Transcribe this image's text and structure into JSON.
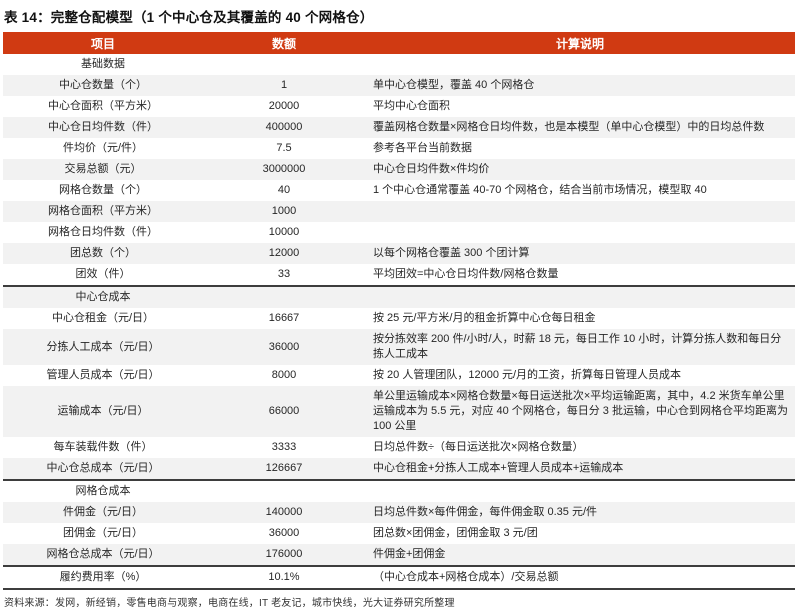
{
  "title": "表 14：完整仓配模型（1 个中心仓及其覆盖的 40 个网格仓）",
  "table": {
    "columns": [
      "项目",
      "数额",
      "计算说明"
    ],
    "rows": [
      {
        "type": "section",
        "label": "基础数据",
        "value": "",
        "note": ""
      },
      {
        "type": "data",
        "label": "中心仓数量（个）",
        "value": "1",
        "note": "单中心仓模型，覆盖 40 个网格仓"
      },
      {
        "type": "data",
        "label": "中心仓面积（平方米）",
        "value": "20000",
        "note": "平均中心仓面积"
      },
      {
        "type": "data",
        "label": "中心仓日均件数（件）",
        "value": "400000",
        "note": "覆盖网格仓数量×网格仓日均件数，也是本模型（单中心仓模型）中的日均总件数"
      },
      {
        "type": "data",
        "label": "件均价（元/件）",
        "value": "7.5",
        "note": "参考各平台当前数据"
      },
      {
        "type": "data",
        "label": "交易总额（元）",
        "value": "3000000",
        "note": "中心仓日均件数×件均价"
      },
      {
        "type": "data",
        "label": "网格仓数量（个）",
        "value": "40",
        "note": "1 个中心仓通常覆盖 40-70 个网格仓，结合当前市场情况，模型取 40"
      },
      {
        "type": "data",
        "label": "网格仓面积（平方米）",
        "value": "1000",
        "note": ""
      },
      {
        "type": "data",
        "label": "网格仓日均件数（件）",
        "value": "10000",
        "note": ""
      },
      {
        "type": "data",
        "label": "团总数（个）",
        "value": "12000",
        "note": "以每个网格仓覆盖 300 个团计算"
      },
      {
        "type": "data",
        "label": "团效（件）",
        "value": "33",
        "note": "平均团效=中心仓日均件数/网格仓数量"
      },
      {
        "type": "section",
        "label": "中心仓成本",
        "value": "",
        "note": "",
        "divider": true
      },
      {
        "type": "data",
        "label": "中心仓租金（元/日）",
        "value": "16667",
        "note": "按 25 元/平方米/月的租金折算中心仓每日租金"
      },
      {
        "type": "data",
        "label": "分拣人工成本（元/日）",
        "value": "36000",
        "note": "按分拣效率 200 件/小时/人，时薪 18 元，每日工作 10 小时，计算分拣人数和每日分拣人工成本"
      },
      {
        "type": "data",
        "label": "管理人员成本（元/日）",
        "value": "8000",
        "note": "按 20 人管理团队，12000 元/月的工资，折算每日管理人员成本"
      },
      {
        "type": "data",
        "label": "运输成本（元/日）",
        "value": "66000",
        "note": "单公里运输成本×网格仓数量×每日运送批次×平均运输距离，其中，4.2 米货车单公里运输成本为 5.5 元，对应 40 个网格仓，每日分 3 批运输，中心仓到网格仓平均距离为 100 公里"
      },
      {
        "type": "data",
        "label": "每车装载件数（件）",
        "value": "3333",
        "note": "日均总件数÷（每日运送批次×网格仓数量）"
      },
      {
        "type": "data",
        "label": "中心仓总成本（元/日）",
        "value": "126667",
        "note": "中心仓租金+分拣人工成本+管理人员成本+运输成本"
      },
      {
        "type": "section",
        "label": "网格仓成本",
        "value": "",
        "note": "",
        "divider": true
      },
      {
        "type": "data",
        "label": "件佣金（元/日）",
        "value": "140000",
        "note": "日均总件数×每件佣金，每件佣金取 0.35 元/件"
      },
      {
        "type": "data",
        "label": "团佣金（元/日）",
        "value": "36000",
        "note": "团总数×团佣金，团佣金取 3 元/团"
      },
      {
        "type": "data",
        "label": "网格仓总成本（元/日）",
        "value": "176000",
        "note": "件佣金+团佣金"
      },
      {
        "type": "data",
        "label": "履约费用率（%）",
        "value": "10.1%",
        "note": "（中心仓成本+网格仓成本）/交易总额",
        "divider": true
      }
    ]
  },
  "source": "资料来源：发网，新经销，零售电商与观察，电商在线，IT 老友记，城市快线，光大证券研究所整理",
  "colors": {
    "header_bg": "#d03a12",
    "stripe": "#f2f2f2",
    "divider": "#3d3d3d",
    "header_text": "#ffffff",
    "body_text": "#262626"
  }
}
